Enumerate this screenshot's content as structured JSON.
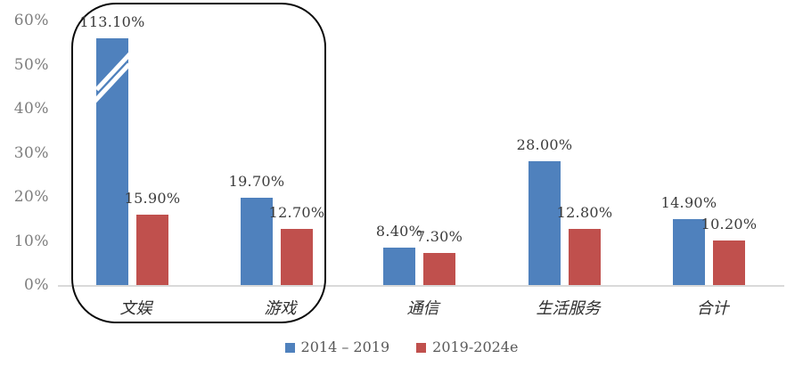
{
  "colors": {
    "series1_blue": "#4f81bd",
    "series2_red": "#c0504d",
    "axis_line_gray": "#d9d9d9",
    "data_label_text": "#3b3b3b",
    "axis_tick_text": "#7d7d7d",
    "legend_text": "#595959",
    "highlight_border": "#0a0a0a",
    "background": "#ffffff"
  },
  "chart_data": {
    "type": "bar",
    "title": "",
    "categories": [
      "文娱",
      "游戏",
      "通信",
      "生活服务",
      "合计"
    ],
    "series": [
      {
        "name": "2014 – 2019",
        "color": "#4f81bd",
        "values": [
          113.1,
          19.7,
          8.4,
          28.0,
          14.9
        ],
        "labels": [
          "113.10%",
          "19.70%",
          "8.40%",
          "28.00%",
          "14.90%"
        ]
      },
      {
        "name": "2019-2024e",
        "color": "#c0504d",
        "values": [
          15.9,
          12.7,
          7.3,
          12.8,
          10.2
        ],
        "labels": [
          "15.90%",
          "12.70%",
          "7.30%",
          "12.80%",
          "10.20%"
        ]
      }
    ],
    "y_axis": {
      "ticks": [
        "0%",
        "10%",
        "20%",
        "30%",
        "40%",
        "50%",
        "60%"
      ],
      "min": 0,
      "max": 60,
      "step": 10
    },
    "broken_bar": {
      "series_index": 0,
      "category_index": 0,
      "display_value": 56,
      "note": "axis-break marks: bar value 113.10% exceeds 60% axis max"
    },
    "annotation_box": {
      "around_categories": [
        "文娱",
        "游戏"
      ]
    },
    "legend_position": "bottom",
    "grid": false
  }
}
